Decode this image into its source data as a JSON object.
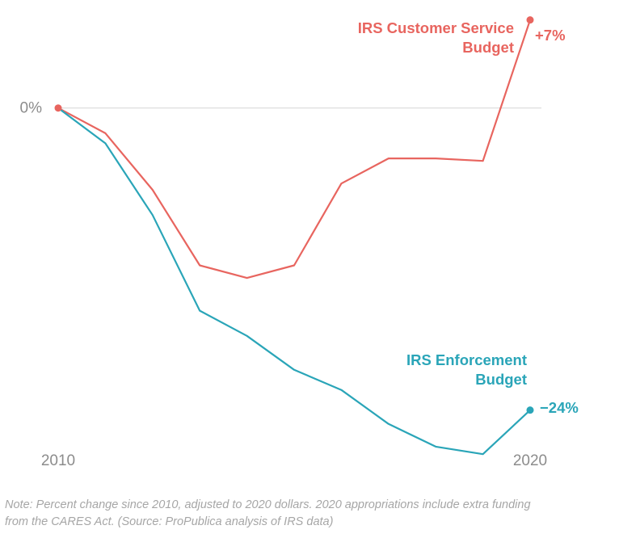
{
  "chart_data": {
    "type": "line",
    "x": [
      2010,
      2011,
      2012,
      2013,
      2014,
      2015,
      2016,
      2017,
      2018,
      2019,
      2020
    ],
    "x_ticks": [
      "2010",
      "2020"
    ],
    "y_ticks": [
      "0%"
    ],
    "ylim": [
      -28,
      7.3
    ],
    "grid": false,
    "baseline": 0,
    "series": [
      {
        "name": "IRS Customer Service Budget",
        "label_lines": [
          "IRS Customer Service",
          "Budget"
        ],
        "end_label": "+7%",
        "color": "#e8655f",
        "values": [
          0,
          -2,
          -6.5,
          -12.5,
          -13.5,
          -12.5,
          -6,
          -4,
          -4,
          -4.2,
          7
        ]
      },
      {
        "name": "IRS Enforcement Budget",
        "label_lines": [
          "IRS Enforcement",
          "Budget"
        ],
        "end_label": "−24%",
        "color": "#2aa5b8",
        "values": [
          0,
          -2.8,
          -8.5,
          -16.1,
          -18.1,
          -20.8,
          -22.4,
          -25.1,
          -26.9,
          -27.5,
          -24
        ]
      }
    ]
  },
  "note": {
    "line1": "Note: Percent change since 2010, adjusted to 2020 dollars. 2020 appropriations include extra funding",
    "line2": "from the CARES Act. (Source: ProPublica analysis of IRS data)"
  }
}
